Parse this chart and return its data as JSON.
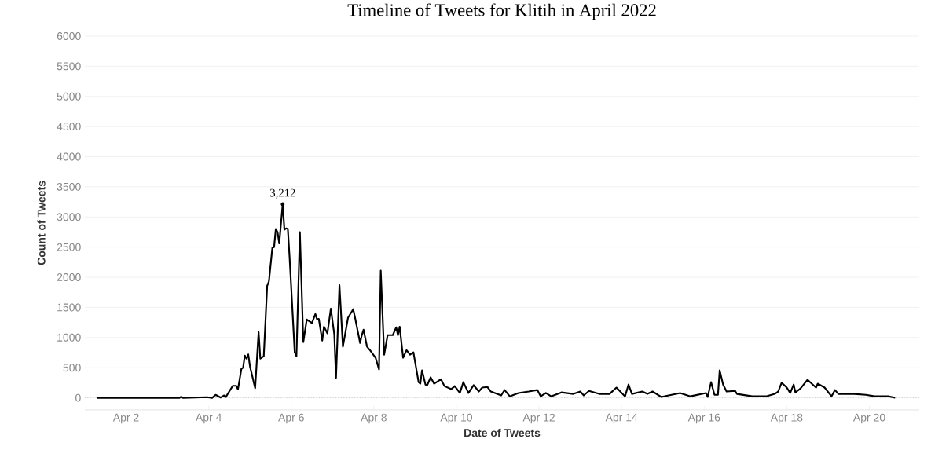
{
  "chart_data": {
    "type": "line",
    "title": "Timeline of Tweets for Klitih in April 2022",
    "xlabel": "Date of Tweets",
    "ylabel": "Count of Tweets",
    "color": "#000000",
    "line_style": "solid",
    "grid": "y",
    "xlim": [
      "2022-04-01",
      "2022-04-21T05:00"
    ],
    "ylim": [
      -200,
      6000
    ],
    "xticks": [
      {
        "value": "2022-04-02",
        "label": "Apr 2"
      },
      {
        "value": "2022-04-04",
        "label": "Apr 4"
      },
      {
        "value": "2022-04-06",
        "label": "Apr 6"
      },
      {
        "value": "2022-04-08",
        "label": "Apr 8"
      },
      {
        "value": "2022-04-10",
        "label": "Apr 10"
      },
      {
        "value": "2022-04-12",
        "label": "Apr 12"
      },
      {
        "value": "2022-04-14",
        "label": "Apr 14"
      },
      {
        "value": "2022-04-16",
        "label": "Apr 16"
      },
      {
        "value": "2022-04-18",
        "label": "Apr 18"
      },
      {
        "value": "2022-04-20",
        "label": "Apr 20"
      }
    ],
    "yticks": [
      0,
      500,
      1000,
      1500,
      2000,
      2500,
      3000,
      3500,
      4000,
      4500,
      5000,
      5500,
      6000
    ],
    "ref_lines": [
      {
        "axis": "y",
        "value": 0,
        "line_style": "dotted",
        "color": "#bbbbbb"
      }
    ],
    "annotations": [
      {
        "text": "3,212",
        "x": "2022-04-05T19:00",
        "y": 3212
      }
    ],
    "x": [
      "2022-04-01T07:00",
      "2022-04-03T07:00",
      "2022-04-03T08:00",
      "2022-04-03T09:00",
      "2022-04-03T23:00",
      "2022-04-04T02:00",
      "2022-04-04T04:00",
      "2022-04-04T07:00",
      "2022-04-04T09:00",
      "2022-04-04T10:00",
      "2022-04-04T14:00",
      "2022-04-04T16:00",
      "2022-04-04T17:00",
      "2022-04-04T19:00",
      "2022-04-04T20:00",
      "2022-04-04T21:00",
      "2022-04-04T22:00",
      "2022-04-04T23:00",
      "2022-04-05T00:00",
      "2022-04-05T03:00",
      "2022-04-05T05:00",
      "2022-04-05T06:00",
      "2022-04-05T08:00",
      "2022-04-05T10:00",
      "2022-04-05T11:00",
      "2022-04-05T13:00",
      "2022-04-05T14:00",
      "2022-04-05T15:00",
      "2022-04-05T16:00",
      "2022-04-05T17:00",
      "2022-04-05T19:00",
      "2022-04-05T20:00",
      "2022-04-05T21:00",
      "2022-04-05T22:00",
      "2022-04-05T23:00",
      "2022-04-06T02:00",
      "2022-04-06T03:00",
      "2022-04-06T05:00",
      "2022-04-06T07:00",
      "2022-04-06T09:00",
      "2022-04-06T12:00",
      "2022-04-06T14:00",
      "2022-04-06T15:00",
      "2022-04-06T16:00",
      "2022-04-06T18:00",
      "2022-04-06T19:00",
      "2022-04-06T21:00",
      "2022-04-06T23:00",
      "2022-04-07T01:00",
      "2022-04-07T02:00",
      "2022-04-07T04:00",
      "2022-04-07T06:00",
      "2022-04-07T09:00",
      "2022-04-07T12:00",
      "2022-04-07T13:00",
      "2022-04-07T16:00",
      "2022-04-07T17:00",
      "2022-04-07T18:00",
      "2022-04-07T20:00",
      "2022-04-07T22:00",
      "2022-04-08T01:00",
      "2022-04-08T03:00",
      "2022-04-08T04:00",
      "2022-04-08T06:00",
      "2022-04-08T08:00",
      "2022-04-08T11:00",
      "2022-04-08T13:00",
      "2022-04-08T14:00",
      "2022-04-08T15:00",
      "2022-04-08T17:00",
      "2022-04-08T19:00",
      "2022-04-08T21:00",
      "2022-04-08T23:00",
      "2022-04-09T02:00",
      "2022-04-09T03:00",
      "2022-04-09T04:00",
      "2022-04-09T06:00",
      "2022-04-09T07:00",
      "2022-04-09T09:00",
      "2022-04-09T11:00",
      "2022-04-09T15:00",
      "2022-04-09T17:00",
      "2022-04-09T21:00",
      "2022-04-09T23:00",
      "2022-04-10T02:00",
      "2022-04-10T04:00",
      "2022-04-10T07:00",
      "2022-04-10T10:00",
      "2022-04-10T13:00",
      "2022-04-10T15:00",
      "2022-04-10T18:00",
      "2022-04-10T20:00",
      "2022-04-11T02:00",
      "2022-04-11T04:00",
      "2022-04-11T07:00",
      "2022-04-11T12:00",
      "2022-04-11T18:00",
      "2022-04-11T23:00",
      "2022-04-12T01:00",
      "2022-04-12T04:00",
      "2022-04-12T07:00",
      "2022-04-12T13:00",
      "2022-04-12T20:00",
      "2022-04-13T00:00",
      "2022-04-13T02:00",
      "2022-04-13T05:00",
      "2022-04-13T11:00",
      "2022-04-13T17:00",
      "2022-04-13T21:00",
      "2022-04-14T02:00",
      "2022-04-14T04:00",
      "2022-04-14T06:00",
      "2022-04-14T12:00",
      "2022-04-14T15:00",
      "2022-04-14T18:00",
      "2022-04-14T23:00",
      "2022-04-15T10:00",
      "2022-04-15T16:00",
      "2022-04-16T01:00",
      "2022-04-16T02:00",
      "2022-04-16T04:00",
      "2022-04-16T06:00",
      "2022-04-16T08:00",
      "2022-04-16T09:00",
      "2022-04-16T11:00",
      "2022-04-16T13:00",
      "2022-04-16T18:00",
      "2022-04-16T19:00",
      "2022-04-17T04:00",
      "2022-04-17T12:00",
      "2022-04-17T17:00",
      "2022-04-17T19:00",
      "2022-04-17T21:00",
      "2022-04-18T00:00",
      "2022-04-18T02:00",
      "2022-04-18T04:00",
      "2022-04-18T05:00",
      "2022-04-18T08:00",
      "2022-04-18T12:00",
      "2022-04-18T17:00",
      "2022-04-18T18:00",
      "2022-04-18T22:00",
      "2022-04-19T02:00",
      "2022-04-19T04:00",
      "2022-04-19T06:00",
      "2022-04-19T15:00",
      "2022-04-19T22:00",
      "2022-04-20T03:00",
      "2022-04-20T11:00",
      "2022-04-20T15:00"
    ],
    "values": [
      0,
      0,
      20,
      0,
      10,
      0,
      50,
      5,
      40,
      15,
      200,
      200,
      140,
      480,
      500,
      700,
      650,
      720,
      520,
      160,
      1090,
      650,
      690,
      1860,
      1930,
      2490,
      2500,
      2800,
      2750,
      2560,
      3212,
      2790,
      2810,
      2800,
      2340,
      755,
      690,
      2750,
      925,
      1300,
      1240,
      1390,
      1300,
      1310,
      950,
      1180,
      1070,
      1480,
      1050,
      325,
      1870,
      850,
      1330,
      1470,
      1340,
      910,
      1040,
      1130,
      850,
      780,
      665,
      470,
      2110,
      715,
      1040,
      1040,
      1170,
      1040,
      1180,
      665,
      790,
      715,
      755,
      260,
      235,
      455,
      220,
      210,
      340,
      235,
      310,
      195,
      145,
      195,
      80,
      260,
      80,
      210,
      105,
      170,
      180,
      105,
      40,
      130,
      25,
      80,
      105,
      130,
      25,
      80,
      25,
      90,
      65,
      105,
      40,
      115,
      65,
      65,
      170,
      25,
      220,
      65,
      105,
      65,
      105,
      15,
      80,
      25,
      80,
      15,
      260,
      50,
      50,
      455,
      220,
      105,
      115,
      65,
      25,
      25,
      65,
      105,
      250,
      170,
      80,
      220,
      90,
      155,
      300,
      170,
      235,
      170,
      25,
      130,
      65,
      65,
      50,
      25,
      25,
      0
    ]
  }
}
